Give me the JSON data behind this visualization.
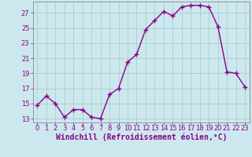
{
  "x": [
    0,
    1,
    2,
    3,
    4,
    5,
    6,
    7,
    8,
    9,
    10,
    11,
    12,
    13,
    14,
    15,
    16,
    17,
    18,
    19,
    20,
    21,
    22,
    23
  ],
  "y": [
    14.8,
    16.0,
    15.0,
    13.2,
    14.2,
    14.2,
    13.2,
    13.0,
    16.2,
    17.0,
    20.5,
    21.5,
    24.8,
    26.0,
    27.2,
    26.6,
    27.8,
    28.0,
    28.0,
    27.8,
    25.2,
    19.2,
    19.0,
    17.2
  ],
  "line_color": "#880088",
  "marker": "+",
  "marker_size": 4,
  "background_color": "#cce8ee",
  "grid_color": "#aacccc",
  "xlabel": "Windchill (Refroidissement éolien,°C)",
  "xlabel_fontsize": 7,
  "ylim": [
    12.5,
    28.5
  ],
  "xlim": [
    -0.5,
    23.5
  ],
  "yticks": [
    13,
    15,
    17,
    19,
    21,
    23,
    25,
    27
  ],
  "xticks": [
    0,
    1,
    2,
    3,
    4,
    5,
    6,
    7,
    8,
    9,
    10,
    11,
    12,
    13,
    14,
    15,
    16,
    17,
    18,
    19,
    20,
    21,
    22,
    23
  ],
  "tick_fontsize": 6,
  "line_width": 1.0,
  "spine_color": "#888888"
}
